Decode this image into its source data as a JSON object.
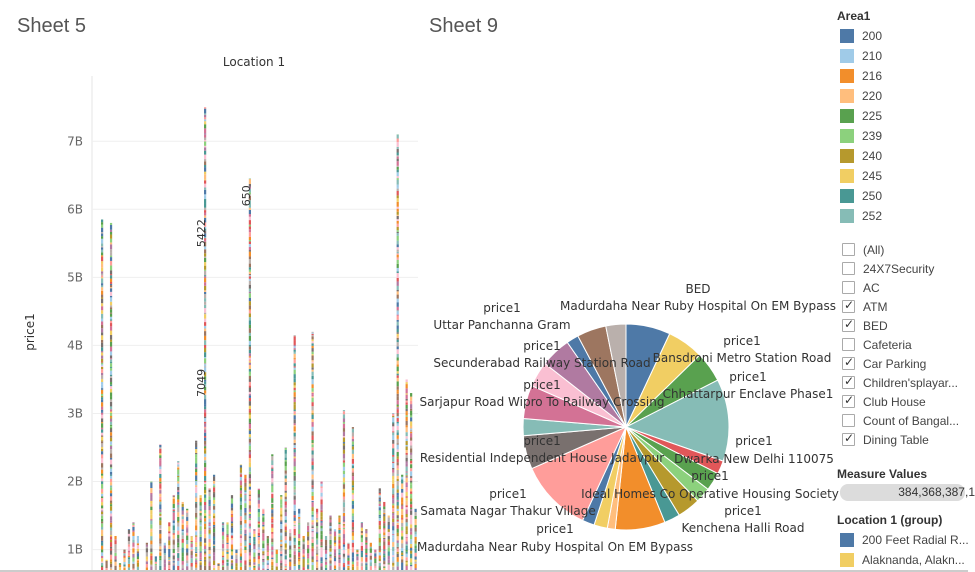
{
  "sheets": {
    "left_title": "Sheet 5",
    "right_title": "Sheet 9"
  },
  "colors": {
    "c200": "#4e79a7",
    "c210": "#a0cbe8",
    "c216": "#f28e2b",
    "c220": "#ffbe7d",
    "c225": "#59a14f",
    "c239": "#8cd17d",
    "c240": "#b6992d",
    "c245": "#f1ce63",
    "c250": "#499894",
    "c252": "#86bcb6",
    "red": "#e15759",
    "pink": "#ff9d9a",
    "grey": "#79706e",
    "lightgrey": "#bab0ac",
    "magenta": "#d37295",
    "lightpink": "#fabfd2",
    "purple": "#b07aa1",
    "brown": "#9d7660"
  },
  "chart_data": [
    {
      "type": "bar",
      "name": "Sheet 5",
      "title": "Location 1",
      "xlabel": "",
      "ylabel": "price1",
      "y_ticks": [
        "1B",
        "2B",
        "3B",
        "4B",
        "5B",
        "6B",
        "7B"
      ],
      "ylim": [
        0.7,
        7.9
      ],
      "grid": true,
      "bar_heights_billions": [
        5.85,
        0.85,
        5.8,
        1.2,
        0.8,
        1.0,
        1.3,
        1.4,
        1.2,
        0.6,
        1.1,
        2.0,
        0.9,
        2.55,
        1.1,
        1.4,
        1.8,
        2.3,
        1.7,
        1.6,
        1.2,
        2.6,
        1.8,
        7.5,
        1.9,
        2.1,
        0.8,
        1.4,
        1.4,
        1.8,
        1.0,
        2.25,
        2.1,
        6.45,
        1.3,
        1.9,
        1.6,
        1.2,
        2.4,
        1.0,
        1.8,
        2.5,
        1.3,
        4.15,
        1.6,
        1.2,
        1.4,
        4.2,
        1.6,
        2.0,
        1.2,
        1.5,
        1.3,
        1.5,
        3.05,
        1.1,
        2.8,
        1.0,
        1.4,
        1.3,
        1.1,
        1.0,
        1.9,
        1.7,
        1.5,
        3.0,
        7.1,
        2.1,
        3.5,
        3.3,
        1.6
      ],
      "annotations": [
        {
          "text": "5422",
          "x_index": 23,
          "y": 5.65
        },
        {
          "text": "7049",
          "x_index": 23,
          "y": 3.45
        },
        {
          "text": "650",
          "x_index": 33,
          "y": 6.2
        }
      ]
    },
    {
      "type": "pie",
      "name": "Sheet 9",
      "slices": [
        {
          "label": "Bansdroni Metro Station Road",
          "value": 7.3,
          "color": "#4e79a7"
        },
        {
          "label": "",
          "value": 6.0,
          "color": "#f1ce63"
        },
        {
          "label": "Chhattarpur Enclave Phase1",
          "value": 5.0,
          "color": "#59a14f"
        },
        {
          "label": "",
          "value": 13.5,
          "color": "#86bcb6"
        },
        {
          "label": "Dwarka New Delhi 110075",
          "value": 2.2,
          "color": "#e15759"
        },
        {
          "label": "",
          "value": 3.0,
          "color": "#59a14f"
        },
        {
          "label": "",
          "value": 2.5,
          "color": "#8cd17d"
        },
        {
          "label": "Kenchena Halli Road",
          "value": 3.8,
          "color": "#b6992d"
        },
        {
          "label": "",
          "value": 2.6,
          "color": "#499894"
        },
        {
          "label": "Ideal Homes Co Operative Housing Society",
          "value": 8.2,
          "color": "#f28e2b"
        },
        {
          "label": "",
          "value": 1.3,
          "color": "#ffbe7d"
        },
        {
          "label": "",
          "value": 2.2,
          "color": "#f1ce63"
        },
        {
          "label": "Samata Nagar Thakur Village",
          "value": 2.0,
          "color": "#4e79a7"
        },
        {
          "label": "Residential Independent House Jadavpur",
          "value": 12.0,
          "color": "#ff9d9a"
        },
        {
          "label": "",
          "value": 5.5,
          "color": "#79706e"
        },
        {
          "label": "",
          "value": 2.8,
          "color": "#86bcb6"
        },
        {
          "label": "Sarjapur Road Wipro To Railway Crossing",
          "value": 5.5,
          "color": "#d37295"
        },
        {
          "label": "",
          "value": 4.2,
          "color": "#fabfd2"
        },
        {
          "label": "Secunderabad Railway Station Road",
          "value": 5.0,
          "color": "#b07aa1"
        },
        {
          "label": "",
          "value": 2.0,
          "color": "#4e79a7"
        },
        {
          "label": "Uttar Panchanna Gram",
          "value": 4.8,
          "color": "#9d7660"
        },
        {
          "label": "Madurdaha Near Ruby Hospital On EM Bypass",
          "value": 3.3,
          "color": "#bab0ac"
        }
      ],
      "labels": [
        {
          "lines": [
            "BED",
            "Madurdaha Near Ruby Hospital On EM Bypass"
          ],
          "anchor": "right-top"
        },
        {
          "lines": [
            "price1",
            "Uttar Panchanna Gram"
          ],
          "anchor": "left-top"
        },
        {
          "lines": [
            "price1",
            "Bansdroni Metro Station Road"
          ],
          "anchor": "right"
        },
        {
          "lines": [
            "price1",
            "Secunderabad Railway Station Road"
          ],
          "anchor": "left"
        },
        {
          "lines": [
            "price1",
            "Chhattarpur Enclave Phase1"
          ],
          "anchor": "right"
        },
        {
          "lines": [
            "price1",
            "Sarjapur Road Wipro To Railway Crossing"
          ],
          "anchor": "left"
        },
        {
          "lines": [
            "price1",
            "Dwarka New Delhi 110075"
          ],
          "anchor": "right"
        },
        {
          "lines": [
            "price1",
            "Residential Independent House Jadavpur"
          ],
          "anchor": "left"
        },
        {
          "lines": [
            "price1",
            "Ideal Homes Co Operative Housing Society"
          ],
          "anchor": "right"
        },
        {
          "lines": [
            "price1",
            "Samata Nagar Thakur Village"
          ],
          "anchor": "left"
        },
        {
          "lines": [
            "price1",
            "Kenchena Halli Road"
          ],
          "anchor": "right"
        },
        {
          "lines": [
            "price1",
            "Madurdaha Near Ruby Hospital On EM Bypass"
          ],
          "anchor": "left-bottom"
        }
      ]
    }
  ],
  "area_legend": {
    "title": "Area1",
    "items": [
      {
        "label": "200",
        "color": "#4e79a7"
      },
      {
        "label": "210",
        "color": "#a0cbe8"
      },
      {
        "label": "216",
        "color": "#f28e2b"
      },
      {
        "label": "220",
        "color": "#ffbe7d"
      },
      {
        "label": "225",
        "color": "#59a14f"
      },
      {
        "label": "239",
        "color": "#8cd17d"
      },
      {
        "label": "240",
        "color": "#b6992d"
      },
      {
        "label": "245",
        "color": "#f1ce63"
      },
      {
        "label": "250",
        "color": "#499894"
      },
      {
        "label": "252",
        "color": "#86bcb6"
      }
    ]
  },
  "filter": {
    "items": [
      {
        "label": "(All)",
        "checked": false
      },
      {
        "label": "24X7Security",
        "checked": false
      },
      {
        "label": "AC",
        "checked": false
      },
      {
        "label": "ATM",
        "checked": true
      },
      {
        "label": "BED",
        "checked": true
      },
      {
        "label": "Cafeteria",
        "checked": false
      },
      {
        "label": "Car Parking",
        "checked": true
      },
      {
        "label": "Children'splayar...",
        "checked": true
      },
      {
        "label": "Club House",
        "checked": true
      },
      {
        "label": "Count of Bangal...",
        "checked": false
      },
      {
        "label": "Dining Table",
        "checked": true
      }
    ]
  },
  "measure_values": {
    "title": "Measure Values",
    "value": "384,368,387,1"
  },
  "location_group": {
    "title": "Location 1 (group)",
    "items": [
      {
        "label": "200 Feet Radial R...",
        "color": "#4e79a7"
      },
      {
        "label": "Alaknanda, Alakn...",
        "color": "#f1ce63"
      }
    ]
  }
}
